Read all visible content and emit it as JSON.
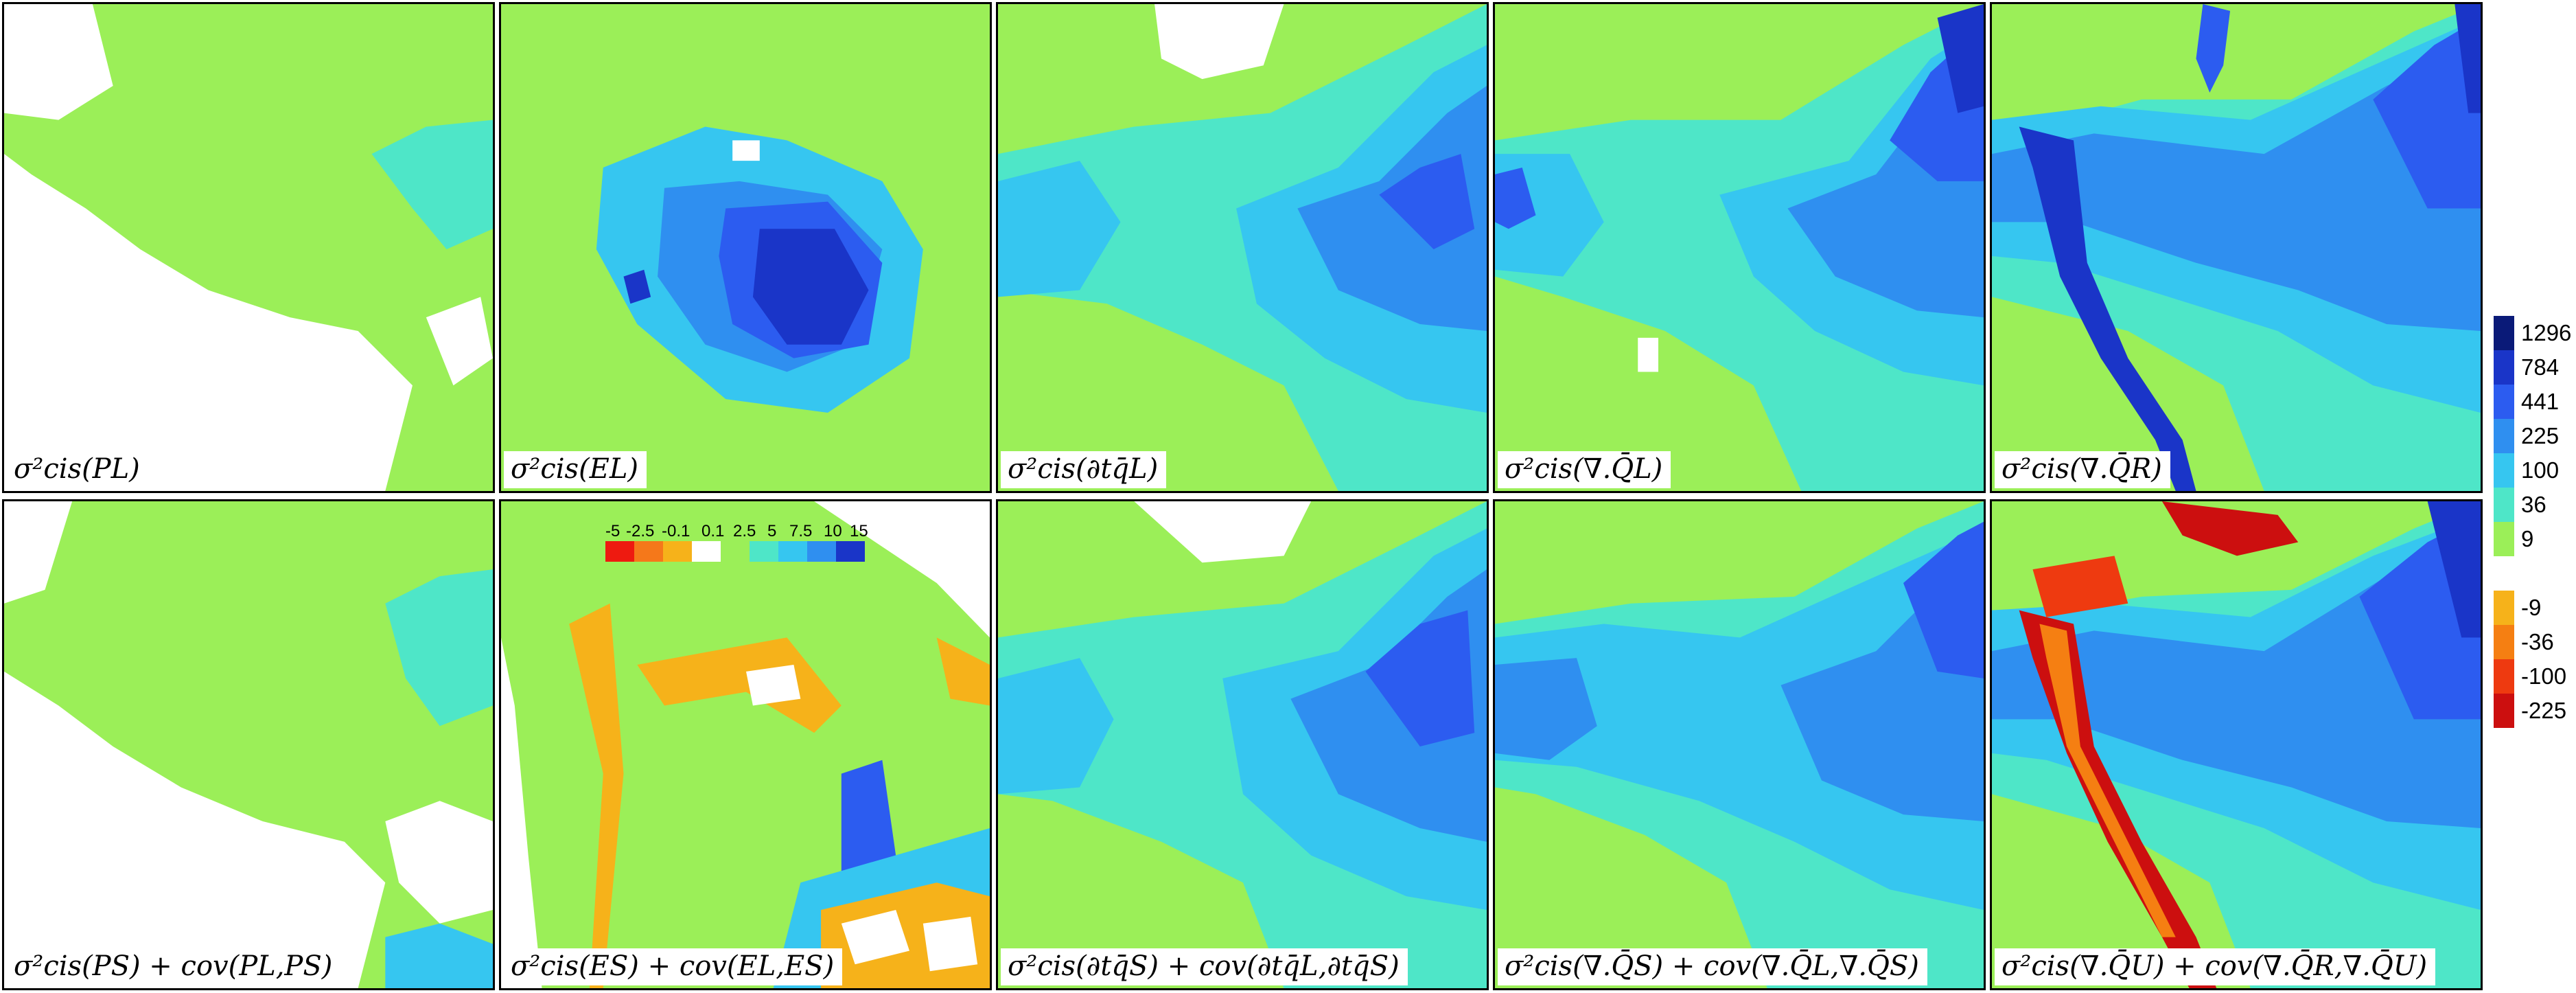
{
  "panels": [
    {
      "label": "σ²cis(PL)"
    },
    {
      "label": "σ²cis(EL)"
    },
    {
      "label": "σ²cis(∂tq̄L)"
    },
    {
      "label": "σ²cis(∇.Q̄L)"
    },
    {
      "label": "σ²cis(∇.Q̄R)"
    },
    {
      "label": "σ²cis(PS) + cov(PL,PS)"
    },
    {
      "label": "σ²cis(ES) + cov(EL,ES)"
    },
    {
      "label": "σ²cis(∂tq̄S) + cov(∂tq̄L,∂tq̄S)"
    },
    {
      "label": "σ²cis(∇.Q̄S) + cov(∇.Q̄L,∇.Q̄S)"
    },
    {
      "label": "σ²cis(∇.Q̄U) + cov(∇.Q̄R,∇.Q̄U)"
    }
  ],
  "colorbar": {
    "positive": [
      {
        "label": "1296",
        "color": "#0a1a78"
      },
      {
        "label": "784",
        "color": "#1a35c8"
      },
      {
        "label": "441",
        "color": "#2c5cf0"
      },
      {
        "label": "225",
        "color": "#2f8ff0"
      },
      {
        "label": "100",
        "color": "#36c6f0"
      },
      {
        "label": "36",
        "color": "#4ee6c8"
      },
      {
        "label": "9",
        "color": "#9bef58"
      }
    ],
    "negative": [
      {
        "label": "-9",
        "color": "#f6b21a"
      },
      {
        "label": "-36",
        "color": "#f57f12"
      },
      {
        "label": "-100",
        "color": "#ee3a10"
      },
      {
        "label": "-225",
        "color": "#cc0f0f"
      }
    ]
  },
  "inset_colorbar": {
    "labels": [
      "-5",
      "-2.5",
      "-0.1",
      "0.1",
      "2.5",
      "5",
      "7.5",
      "10",
      "15"
    ],
    "colors": [
      "#ee1a10",
      "#f5781a",
      "#f6b21a",
      "#ffffff",
      "#9bef58",
      "#4ee6c8",
      "#36c6f0",
      "#2f8ff0",
      "#1a35c8"
    ]
  }
}
